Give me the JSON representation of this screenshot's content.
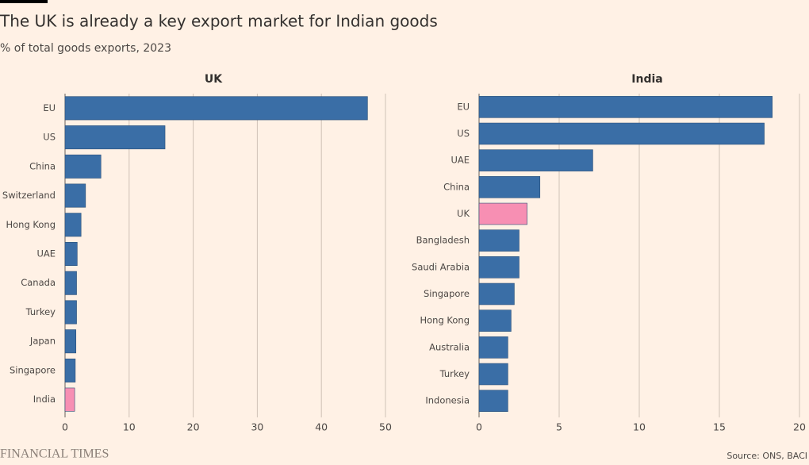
{
  "header": {
    "title": "The UK is already a key export market for Indian goods",
    "subtitle": "% of total goods exports, 2023"
  },
  "chart_data": [
    {
      "type": "bar",
      "orientation": "horizontal",
      "title": "UK",
      "categories": [
        "EU",
        "US",
        "China",
        "Switzerland",
        "Hong Kong",
        "UAE",
        "Canada",
        "Turkey",
        "Japan",
        "Singapore",
        "India"
      ],
      "values": [
        47.2,
        15.6,
        5.6,
        3.2,
        2.5,
        1.9,
        1.8,
        1.8,
        1.7,
        1.6,
        1.5
      ],
      "colors": [
        "#3a6ea6",
        "#3a6ea6",
        "#3a6ea6",
        "#3a6ea6",
        "#3a6ea6",
        "#3a6ea6",
        "#3a6ea6",
        "#3a6ea6",
        "#3a6ea6",
        "#3a6ea6",
        "#f78fb3"
      ],
      "xlim": [
        0,
        50
      ],
      "xticks": [
        0,
        10,
        20,
        30,
        40,
        50
      ],
      "grid": true
    },
    {
      "type": "bar",
      "orientation": "horizontal",
      "title": "India",
      "categories": [
        "EU",
        "US",
        "UAE",
        "China",
        "UK",
        "Bangladesh",
        "Saudi Arabia",
        "Singapore",
        "Hong Kong",
        "Australia",
        "Turkey",
        "Indonesia"
      ],
      "values": [
        18.3,
        17.8,
        7.1,
        3.8,
        3.0,
        2.5,
        2.5,
        2.2,
        2.0,
        1.8,
        1.8,
        1.8
      ],
      "colors": [
        "#3a6ea6",
        "#3a6ea6",
        "#3a6ea6",
        "#3a6ea6",
        "#f78fb3",
        "#3a6ea6",
        "#3a6ea6",
        "#3a6ea6",
        "#3a6ea6",
        "#3a6ea6",
        "#3a6ea6",
        "#3a6ea6"
      ],
      "xlim": [
        0,
        20
      ],
      "xticks": [
        0,
        5,
        10,
        15,
        20
      ],
      "grid": true
    }
  ],
  "footer": {
    "brand": "FINANCIAL TIMES",
    "source": "Source: ONS, BACI"
  }
}
